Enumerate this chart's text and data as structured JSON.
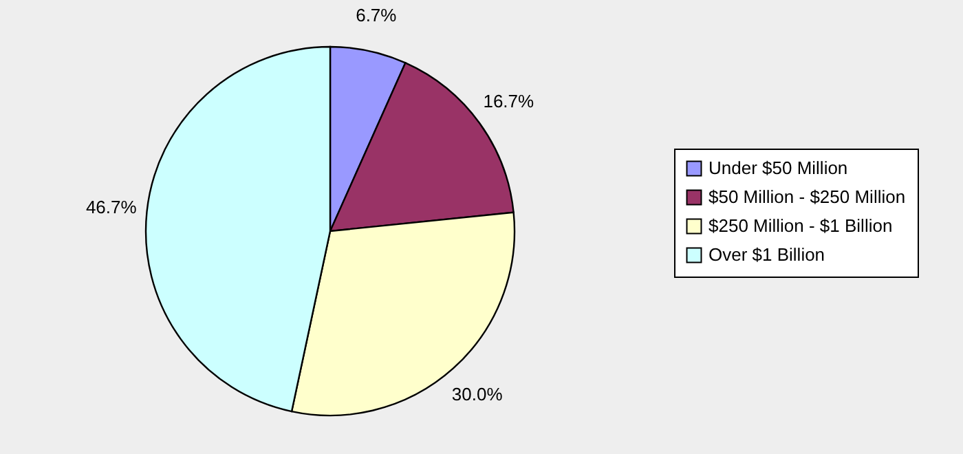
{
  "chart_data": {
    "type": "pie",
    "categories": [
      "Under $50 Million",
      "$50 Million - $250 Million",
      "$250 Million - $1 Billion",
      "Over $1 Billion"
    ],
    "values": [
      6.7,
      16.7,
      30.0,
      46.7
    ],
    "colors": [
      "#9999ff",
      "#993366",
      "#ffffcc",
      "#ccffff"
    ],
    "value_labels": [
      "6.7%",
      "16.7%",
      "30.0%",
      "46.7%"
    ],
    "legend": "right"
  }
}
